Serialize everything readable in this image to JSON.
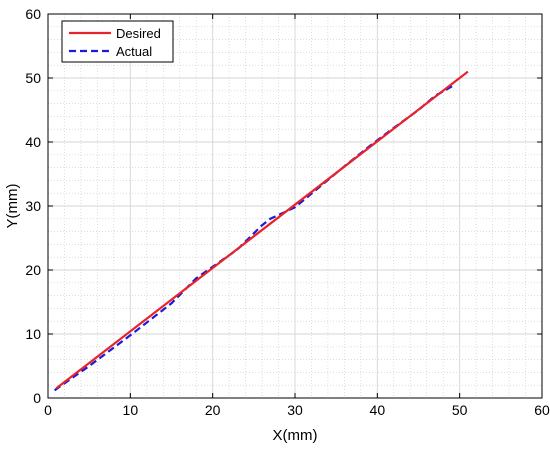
{
  "chart_data": {
    "type": "line",
    "xlabel": "X(mm)",
    "ylabel": "Y(mm)",
    "xlim": [
      0,
      60
    ],
    "ylim": [
      0,
      60
    ],
    "xticks": [
      0,
      10,
      20,
      30,
      40,
      50,
      60
    ],
    "yticks": [
      0,
      10,
      20,
      30,
      40,
      50,
      60
    ],
    "grid": true,
    "minor_grid": true,
    "legend_position": "top-left",
    "series": [
      {
        "name": "Desired",
        "color": "#e8232a",
        "style": "solid",
        "x": [
          1,
          51
        ],
        "y": [
          1.5,
          51
        ]
      },
      {
        "name": "Actual",
        "color": "#1a1adb",
        "style": "dashed",
        "x": [
          0.8,
          5,
          10,
          15,
          18,
          20,
          23,
          26,
          27,
          30,
          33,
          36,
          39,
          42,
          45,
          47,
          49.5
        ],
        "y": [
          1.2,
          5,
          9.8,
          14.8,
          18.7,
          20.5,
          23.2,
          27,
          28,
          29.8,
          33,
          36.2,
          39.3,
          42.2,
          45,
          47.2,
          49
        ]
      }
    ]
  }
}
